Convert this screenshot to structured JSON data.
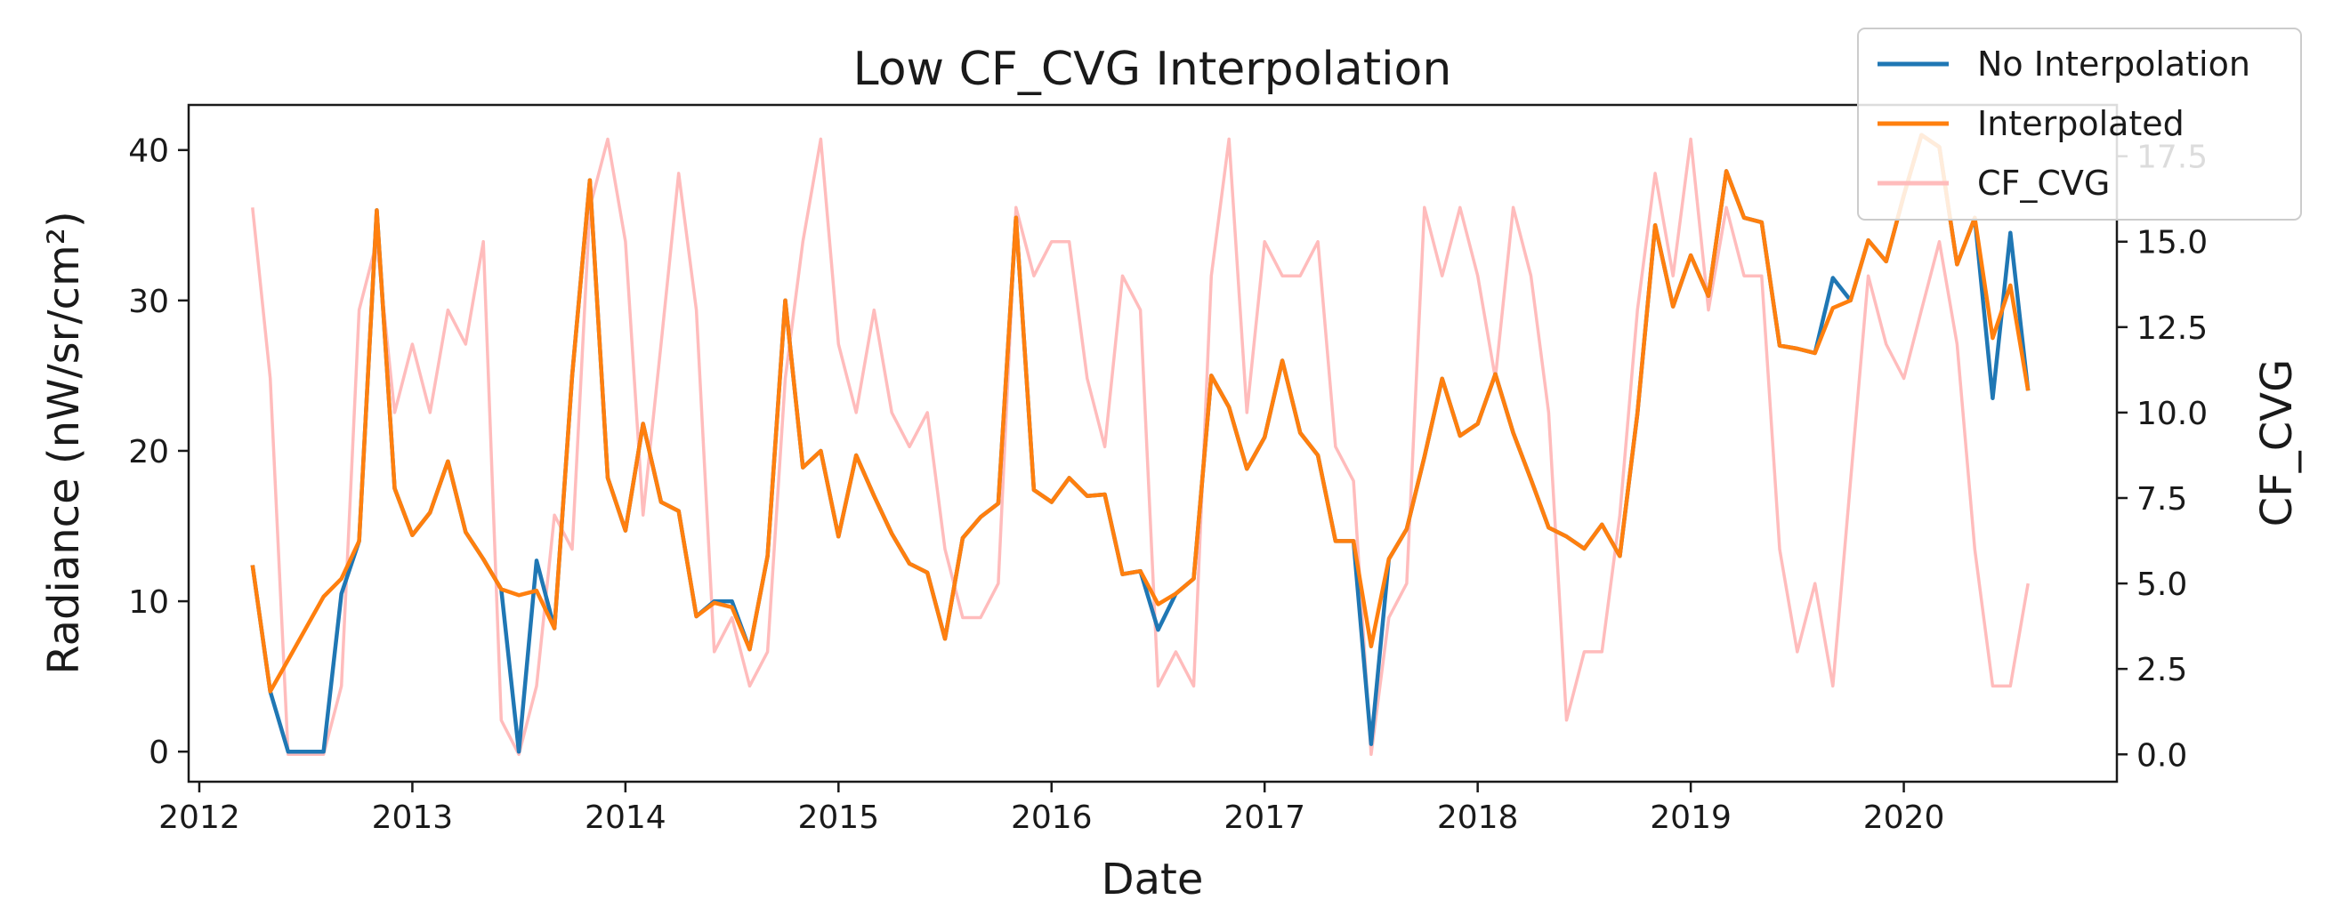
{
  "chart_data": {
    "type": "line",
    "title": "Low CF_CVG Interpolation",
    "xlabel": "Date",
    "ylabel": "Radiance (nW/sr/cm²)",
    "ylabel_right": "CF_CVG",
    "xlim": [
      2011.95,
      2021.0
    ],
    "ylim": [
      -2,
      43
    ],
    "ylim_right": [
      -0.8,
      19.0
    ],
    "x_ticks": [
      2012,
      2013,
      2014,
      2015,
      2016,
      2017,
      2018,
      2019,
      2020
    ],
    "y_ticks": [
      0,
      10,
      20,
      30,
      40
    ],
    "y_ticks_right": [
      "0.0",
      "2.5",
      "5.0",
      "7.5",
      "10.0",
      "12.5",
      "15.0",
      "17.5"
    ],
    "y_ticks_right_values": [
      0.0,
      2.5,
      5.0,
      7.5,
      10.0,
      12.5,
      15.0,
      17.5
    ],
    "legend_position": "top-right",
    "x": [
      2012.25,
      2012.333,
      2012.417,
      2012.5,
      2012.583,
      2012.667,
      2012.75,
      2012.833,
      2012.917,
      2013.0,
      2013.083,
      2013.167,
      2013.25,
      2013.333,
      2013.417,
      2013.5,
      2013.583,
      2013.667,
      2013.75,
      2013.833,
      2013.917,
      2014.0,
      2014.083,
      2014.167,
      2014.25,
      2014.333,
      2014.417,
      2014.5,
      2014.583,
      2014.667,
      2014.75,
      2014.833,
      2014.917,
      2015.0,
      2015.083,
      2015.167,
      2015.25,
      2015.333,
      2015.417,
      2015.5,
      2015.583,
      2015.667,
      2015.75,
      2015.833,
      2015.917,
      2016.0,
      2016.083,
      2016.167,
      2016.25,
      2016.333,
      2016.417,
      2016.5,
      2016.583,
      2016.667,
      2016.75,
      2016.833,
      2016.917,
      2017.0,
      2017.083,
      2017.167,
      2017.25,
      2017.333,
      2017.417,
      2017.5,
      2017.583,
      2017.667,
      2017.75,
      2017.833,
      2017.917,
      2018.0,
      2018.083,
      2018.167,
      2018.25,
      2018.333,
      2018.417,
      2018.5,
      2018.583,
      2018.667,
      2018.75,
      2018.833,
      2018.917,
      2019.0,
      2019.083,
      2019.167,
      2019.25,
      2019.333,
      2019.417,
      2019.5,
      2019.583,
      2019.667,
      2019.75,
      2019.833,
      2019.917,
      2020.0,
      2020.083,
      2020.167,
      2020.25,
      2020.333,
      2020.417,
      2020.5,
      2020.583
    ],
    "series": [
      {
        "name": "No Interpolation",
        "axis": "left",
        "color": "#1f77b4",
        "values": [
          12.4,
          4.0,
          0.0,
          0.0,
          0.0,
          10.5,
          14.0,
          36.0,
          17.5,
          14.4,
          15.9,
          19.3,
          14.6,
          12.8,
          10.8,
          0.0,
          12.7,
          8.2,
          25.0,
          38.0,
          18.2,
          14.7,
          21.8,
          16.6,
          16.0,
          9.0,
          10.0,
          10.0,
          6.8,
          13.0,
          30.0,
          18.9,
          20.0,
          14.3,
          19.7,
          17.0,
          14.5,
          12.5,
          11.9,
          7.5,
          14.2,
          15.6,
          16.5,
          35.5,
          17.4,
          16.6,
          18.2,
          17.0,
          17.1,
          11.8,
          12.0,
          8.1,
          10.5,
          11.5,
          25.0,
          22.9,
          18.8,
          20.9,
          26.0,
          21.2,
          19.7,
          14.0,
          14.0,
          0.5,
          12.8,
          14.8,
          19.6,
          24.8,
          21.0,
          21.8,
          25.1,
          21.2,
          18.1,
          14.9,
          14.3,
          13.5,
          15.1,
          13.0,
          22.5,
          35.0,
          29.6,
          33.0,
          30.3,
          38.6,
          35.5,
          35.2,
          27.0,
          26.8,
          26.5,
          31.5,
          30.0,
          34.0,
          32.6,
          37.0,
          41.0,
          40.2,
          32.4,
          35.5,
          23.5,
          34.5,
          24.0
        ]
      },
      {
        "name": "Interpolated",
        "axis": "left",
        "color": "#ff7f0e",
        "values": [
          12.4,
          4.0,
          6.1,
          8.2,
          10.3,
          11.5,
          14.0,
          36.0,
          17.5,
          14.4,
          15.9,
          19.3,
          14.6,
          12.8,
          10.8,
          10.4,
          10.7,
          8.2,
          25.0,
          38.0,
          18.2,
          14.7,
          21.8,
          16.6,
          16.0,
          9.0,
          9.9,
          9.6,
          6.8,
          13.0,
          30.0,
          18.9,
          20.0,
          14.3,
          19.7,
          17.0,
          14.5,
          12.5,
          11.9,
          7.5,
          14.2,
          15.6,
          16.5,
          35.5,
          17.4,
          16.6,
          18.2,
          17.0,
          17.1,
          11.8,
          12.0,
          9.8,
          10.5,
          11.5,
          25.0,
          22.9,
          18.8,
          20.9,
          26.0,
          21.2,
          19.7,
          14.0,
          14.0,
          7.0,
          12.8,
          14.8,
          19.6,
          24.8,
          21.0,
          21.8,
          25.1,
          21.2,
          18.1,
          14.9,
          14.3,
          13.5,
          15.1,
          13.0,
          22.5,
          35.0,
          29.6,
          33.0,
          30.3,
          38.6,
          35.5,
          35.2,
          27.0,
          26.8,
          26.5,
          29.5,
          30.0,
          34.0,
          32.6,
          37.0,
          41.0,
          40.2,
          32.4,
          35.5,
          27.5,
          31.0,
          24.0
        ]
      },
      {
        "name": "CF_CVG",
        "axis": "right",
        "color": "#ffbcbc",
        "values": [
          16,
          11,
          0,
          0,
          0,
          2,
          13,
          15,
          10,
          12,
          10,
          13,
          12,
          15,
          1,
          0,
          2,
          7,
          6,
          16,
          18,
          15,
          7,
          12,
          17,
          13,
          3,
          4,
          2,
          3,
          11,
          15,
          18,
          12,
          10,
          13,
          10,
          9,
          10,
          6,
          4,
          4,
          5,
          16,
          14,
          15,
          15,
          11,
          9,
          14,
          13,
          2,
          3,
          2,
          14,
          18,
          10,
          15,
          14,
          14,
          15,
          9,
          8,
          0,
          4,
          5,
          16,
          14,
          16,
          14,
          11,
          16,
          14,
          10,
          1,
          3,
          3,
          7,
          13,
          17,
          14,
          18,
          13,
          16,
          14,
          14,
          6,
          3,
          5,
          2,
          8,
          14,
          12,
          11,
          13,
          15,
          12,
          6,
          2,
          2,
          5
        ]
      }
    ]
  }
}
